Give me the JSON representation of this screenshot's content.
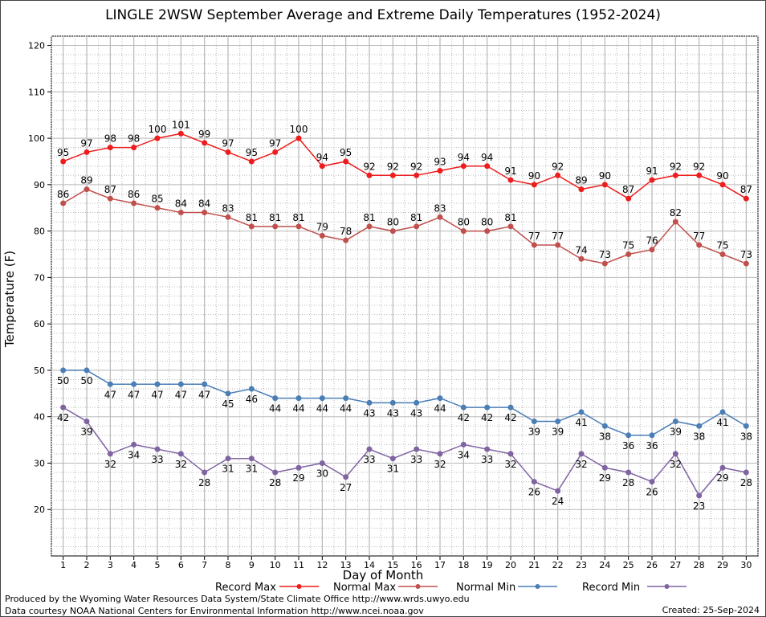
{
  "colors": {
    "record_max": "#ee1c1c",
    "normal_max": "#c0504d",
    "normal_min": "#4a7eb5",
    "record_min": "#8064a2",
    "grid": "#b8b8b8",
    "background": "#ffffff"
  },
  "footer": {
    "produced_by": "Produced by the Wyoming Water Resources Data System/State Climate Office http://www.wrds.uwyo.edu",
    "data_courtesy": "Data courtesy NOAA National Centers for Environmental Information http://www.ncei.noaa.gov",
    "created": "Created:  25-Sep-2024"
  },
  "chart_data": {
    "type": "line",
    "title": "LINGLE 2WSW September Average and Extreme Daily Temperatures (1952-2024)",
    "xlabel": "Day of Month",
    "ylabel": "Temperature (F)",
    "xlim": [
      0.5,
      30.5
    ],
    "ylim": [
      10,
      122
    ],
    "yticks": [
      20,
      30,
      40,
      50,
      60,
      70,
      80,
      90,
      100,
      110,
      120
    ],
    "grid": true,
    "legend_position": "bottom",
    "x": [
      1,
      2,
      3,
      4,
      5,
      6,
      7,
      8,
      9,
      10,
      11,
      12,
      13,
      14,
      15,
      16,
      17,
      18,
      19,
      20,
      21,
      22,
      23,
      24,
      25,
      26,
      27,
      28,
      29,
      30
    ],
    "series": [
      {
        "name": "Record Max",
        "color_key": "record_max",
        "label_side": "above",
        "values": [
          95,
          97,
          98,
          98,
          100,
          101,
          99,
          97,
          95,
          97,
          100,
          94,
          95,
          92,
          92,
          92,
          93,
          94,
          94,
          91,
          90,
          92,
          89,
          90,
          87,
          91,
          92,
          92,
          90,
          87
        ]
      },
      {
        "name": "Normal Max",
        "color_key": "normal_max",
        "label_side": "above",
        "values": [
          86,
          89,
          87,
          86,
          85,
          84,
          84,
          83,
          81,
          81,
          81,
          79,
          78,
          81,
          80,
          81,
          83,
          80,
          80,
          81,
          77,
          77,
          74,
          73,
          75,
          76,
          82,
          77,
          75,
          73
        ]
      },
      {
        "name": "Normal Min",
        "color_key": "normal_min",
        "label_side": "below",
        "values": [
          50,
          50,
          47,
          47,
          47,
          47,
          47,
          45,
          46,
          44,
          44,
          44,
          44,
          43,
          43,
          43,
          44,
          42,
          42,
          42,
          39,
          39,
          41,
          38,
          36,
          36,
          39,
          38,
          41,
          38
        ]
      },
      {
        "name": "Record Min",
        "color_key": "record_min",
        "label_side": "below",
        "values": [
          42,
          39,
          32,
          34,
          33,
          32,
          28,
          31,
          31,
          28,
          29,
          30,
          27,
          33,
          31,
          33,
          32,
          34,
          33,
          32,
          26,
          24,
          32,
          29,
          28,
          26,
          32,
          23,
          29,
          28
        ]
      }
    ]
  }
}
